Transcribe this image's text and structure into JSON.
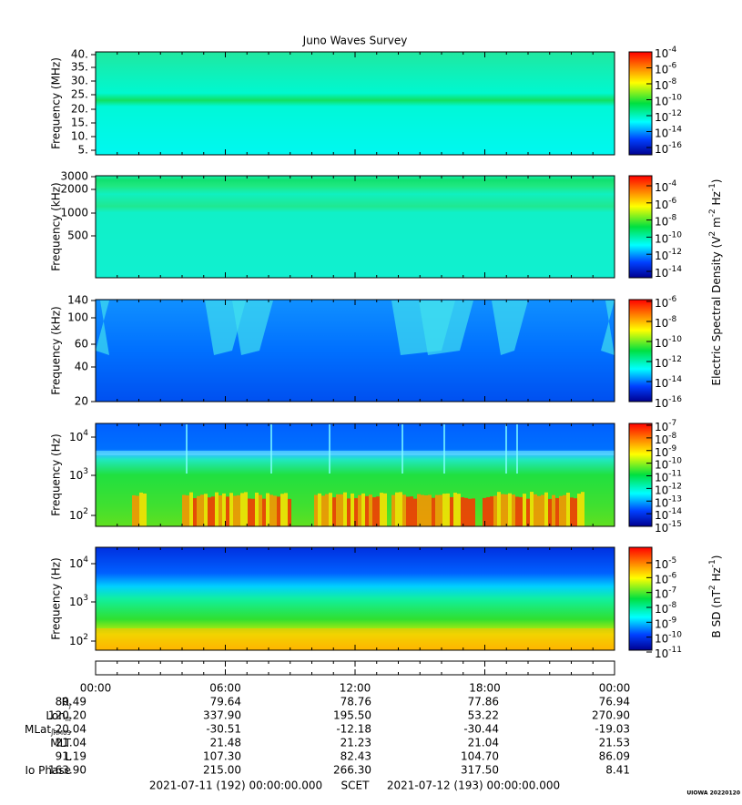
{
  "title": "Juno Waves Survey",
  "power_base": "10",
  "panels": [
    {
      "ylabel": "Frequency (MHz)",
      "yticks": [
        "40.",
        "35.",
        "30.",
        "25.",
        "20.",
        "15.",
        "10.",
        "5."
      ],
      "cbar_exps": [
        "-4",
        "-6",
        "-8",
        "-10",
        "-12",
        "-14",
        "-16"
      ]
    },
    {
      "ylabel": "Frequency (kHz)",
      "yticks": [
        "3000",
        "2000",
        "1000",
        "500"
      ],
      "cbar_exps": [
        "-4",
        "-6",
        "-8",
        "-10",
        "-12",
        "-14"
      ]
    },
    {
      "ylabel": "Frequency (kHz)",
      "yticks": [
        "140",
        "100",
        "60",
        "40",
        "20"
      ],
      "cbar_exps": [
        "-6",
        "-8",
        "-10",
        "-12",
        "-14",
        "-16"
      ]
    },
    {
      "ylabel": "Frequency (Hz)",
      "ytick_exps": [
        "4",
        "3",
        "2"
      ],
      "cbar_exps": [
        "-7",
        "-8",
        "-9",
        "-10",
        "-11",
        "-12",
        "-13",
        "-14",
        "-15"
      ]
    },
    {
      "ylabel": "Frequency (Hz)",
      "ytick_exps": [
        "4",
        "3",
        "2"
      ],
      "cbar_exps": [
        "-5",
        "-6",
        "-7",
        "-8",
        "-9",
        "-10",
        "-11"
      ]
    }
  ],
  "cbar_labels": [
    [
      {
        "text": "Electric Spectral Density (V"
      },
      {
        "sup": "2"
      },
      {
        "text": " m"
      },
      {
        "sup": "-2"
      },
      {
        "text": " Hz"
      },
      {
        "sup": "-1"
      },
      {
        "text": ")"
      }
    ],
    [
      {
        "text": "B SD (nT"
      },
      {
        "sup": "2"
      },
      {
        "text": " Hz"
      },
      {
        "sup": "-1"
      },
      {
        "text": ")"
      }
    ]
  ],
  "time_ticks": [
    "00:00",
    "06:00",
    "12:00",
    "18:00",
    "00:00"
  ],
  "ephemeris": {
    "labels": [
      {
        "text": "R",
        "sub": "J"
      },
      {
        "text": "Lon",
        "sub": "III"
      },
      {
        "text": "MLat",
        "sub": "JRM09"
      },
      {
        "text": "MLT"
      },
      {
        "text": "L"
      },
      {
        "text": "Io Phase"
      }
    ],
    "rows": [
      [
        "80.49",
        "79.64",
        "78.76",
        "77.86",
        "76.94"
      ],
      [
        "120.20",
        "337.90",
        "195.50",
        "53.22",
        "270.90"
      ],
      [
        "-20.04",
        "-30.51",
        "-12.18",
        "-30.44",
        "-19.03"
      ],
      [
        "21.04",
        "21.48",
        "21.23",
        "21.04",
        "21.53"
      ],
      [
        "91.19",
        "107.30",
        "82.43",
        "104.70",
        "86.09"
      ],
      [
        "163.90",
        "215.00",
        "266.30",
        "317.50",
        "8.41"
      ]
    ]
  },
  "footer": {
    "start": "2021-07-11 (192) 00:00:00.000",
    "label": "SCET",
    "end": "2021-07-12 (193) 00:00:00.000"
  },
  "credit": "UIOWA 20220120"
}
